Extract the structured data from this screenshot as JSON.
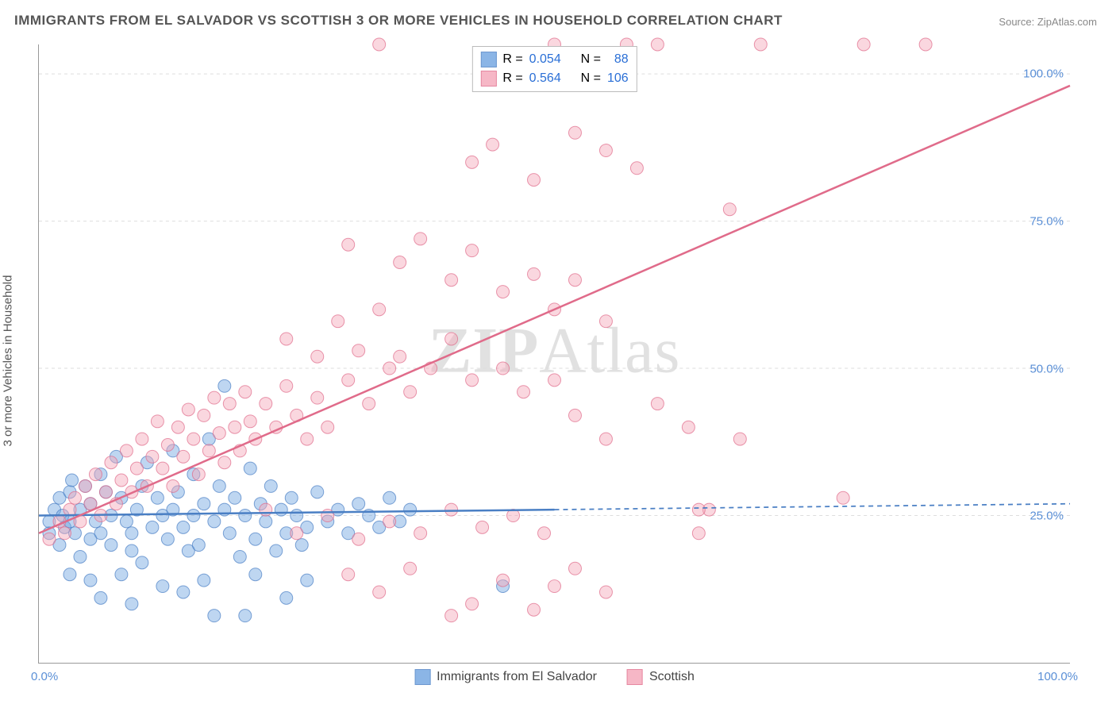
{
  "title": "IMMIGRANTS FROM EL SALVADOR VS SCOTTISH 3 OR MORE VEHICLES IN HOUSEHOLD CORRELATION CHART",
  "source_label": "Source:",
  "source_name": "ZipAtlas.com",
  "y_axis_label": "3 or more Vehicles in Household",
  "watermark": "ZIPAtlas",
  "chart": {
    "type": "scatter",
    "xlim": [
      0,
      100
    ],
    "ylim": [
      0,
      105
    ],
    "y_ticks": [
      25,
      50,
      75,
      100
    ],
    "y_tick_labels": [
      "25.0%",
      "50.0%",
      "75.0%",
      "100.0%"
    ],
    "x_tick_labels": [
      "0.0%",
      "100.0%"
    ],
    "background_color": "#ffffff",
    "grid_color": "#dddddd",
    "marker_radius": 8,
    "marker_opacity": 0.45,
    "trend_line_width": 2.5,
    "series": [
      {
        "name": "Immigrants from El Salvador",
        "fill": "#6fa3e0",
        "stroke": "#4a7fc4",
        "R": "0.054",
        "N": "88",
        "trend": {
          "y_at_x0": 25,
          "y_at_x100": 27,
          "solid_until_x": 50
        },
        "points": [
          [
            1,
            22
          ],
          [
            1,
            24
          ],
          [
            1.5,
            26
          ],
          [
            2,
            28
          ],
          [
            2,
            20
          ],
          [
            2.3,
            25
          ],
          [
            2.5,
            23
          ],
          [
            3,
            24
          ],
          [
            3,
            29
          ],
          [
            3.2,
            31
          ],
          [
            3.5,
            22
          ],
          [
            4,
            26
          ],
          [
            4,
            18
          ],
          [
            4.5,
            30
          ],
          [
            5,
            27
          ],
          [
            5,
            21
          ],
          [
            5.5,
            24
          ],
          [
            6,
            32
          ],
          [
            6,
            22
          ],
          [
            6.5,
            29
          ],
          [
            7,
            25
          ],
          [
            7,
            20
          ],
          [
            7.5,
            35
          ],
          [
            8,
            28
          ],
          [
            8.5,
            24
          ],
          [
            9,
            22
          ],
          [
            9,
            19
          ],
          [
            9.5,
            26
          ],
          [
            10,
            30
          ],
          [
            10,
            17
          ],
          [
            10.5,
            34
          ],
          [
            11,
            23
          ],
          [
            11.5,
            28
          ],
          [
            12,
            25
          ],
          [
            12.5,
            21
          ],
          [
            13,
            36
          ],
          [
            13,
            26
          ],
          [
            13.5,
            29
          ],
          [
            14,
            23
          ],
          [
            14.5,
            19
          ],
          [
            15,
            32
          ],
          [
            15,
            25
          ],
          [
            15.5,
            20
          ],
          [
            16,
            27
          ],
          [
            16.5,
            38
          ],
          [
            17,
            24
          ],
          [
            17.5,
            30
          ],
          [
            18,
            26
          ],
          [
            18,
            47
          ],
          [
            18.5,
            22
          ],
          [
            19,
            28
          ],
          [
            19.5,
            18
          ],
          [
            20,
            25
          ],
          [
            20.5,
            33
          ],
          [
            21,
            21
          ],
          [
            21.5,
            27
          ],
          [
            22,
            24
          ],
          [
            22.5,
            30
          ],
          [
            23,
            19
          ],
          [
            23.5,
            26
          ],
          [
            24,
            22
          ],
          [
            24.5,
            28
          ],
          [
            25,
            25
          ],
          [
            25.5,
            20
          ],
          [
            26,
            23
          ],
          [
            27,
            29
          ],
          [
            28,
            24
          ],
          [
            29,
            26
          ],
          [
            30,
            22
          ],
          [
            31,
            27
          ],
          [
            32,
            25
          ],
          [
            33,
            23
          ],
          [
            34,
            28
          ],
          [
            35,
            24
          ],
          [
            36,
            26
          ],
          [
            6,
            11
          ],
          [
            9,
            10
          ],
          [
            14,
            12
          ],
          [
            17,
            8
          ],
          [
            20,
            8
          ],
          [
            24,
            11
          ],
          [
            45,
            13
          ],
          [
            3,
            15
          ],
          [
            5,
            14
          ],
          [
            8,
            15
          ],
          [
            12,
            13
          ],
          [
            16,
            14
          ],
          [
            21,
            15
          ],
          [
            26,
            14
          ]
        ]
      },
      {
        "name": "Scottish",
        "fill": "#f4a6b8",
        "stroke": "#e06b8a",
        "R": "0.564",
        "N": "106",
        "trend": {
          "y_at_x0": 22,
          "y_at_x100": 98,
          "solid_until_x": 100
        },
        "points": [
          [
            1,
            21
          ],
          [
            2,
            24
          ],
          [
            2.5,
            22
          ],
          [
            3,
            26
          ],
          [
            3.5,
            28
          ],
          [
            4,
            24
          ],
          [
            4.5,
            30
          ],
          [
            5,
            27
          ],
          [
            5.5,
            32
          ],
          [
            6,
            25
          ],
          [
            6.5,
            29
          ],
          [
            7,
            34
          ],
          [
            7.5,
            27
          ],
          [
            8,
            31
          ],
          [
            8.5,
            36
          ],
          [
            9,
            29
          ],
          [
            9.5,
            33
          ],
          [
            10,
            38
          ],
          [
            10.5,
            30
          ],
          [
            11,
            35
          ],
          [
            11.5,
            41
          ],
          [
            12,
            33
          ],
          [
            12.5,
            37
          ],
          [
            13,
            30
          ],
          [
            13.5,
            40
          ],
          [
            14,
            35
          ],
          [
            14.5,
            43
          ],
          [
            15,
            38
          ],
          [
            15.5,
            32
          ],
          [
            16,
            42
          ],
          [
            16.5,
            36
          ],
          [
            17,
            45
          ],
          [
            17.5,
            39
          ],
          [
            18,
            34
          ],
          [
            18.5,
            44
          ],
          [
            19,
            40
          ],
          [
            19.5,
            36
          ],
          [
            20,
            46
          ],
          [
            20.5,
            41
          ],
          [
            21,
            38
          ],
          [
            22,
            44
          ],
          [
            23,
            40
          ],
          [
            24,
            47
          ],
          [
            25,
            42
          ],
          [
            26,
            38
          ],
          [
            27,
            45
          ],
          [
            28,
            40
          ],
          [
            30,
            48
          ],
          [
            32,
            44
          ],
          [
            34,
            50
          ],
          [
            36,
            46
          ],
          [
            24,
            55
          ],
          [
            27,
            52
          ],
          [
            29,
            58
          ],
          [
            31,
            53
          ],
          [
            33,
            60
          ],
          [
            35,
            52
          ],
          [
            38,
            50
          ],
          [
            40,
            55
          ],
          [
            42,
            48
          ],
          [
            45,
            50
          ],
          [
            47,
            46
          ],
          [
            50,
            48
          ],
          [
            52,
            42
          ],
          [
            55,
            38
          ],
          [
            30,
            71
          ],
          [
            35,
            68
          ],
          [
            37,
            72
          ],
          [
            40,
            65
          ],
          [
            42,
            70
          ],
          [
            45,
            63
          ],
          [
            48,
            66
          ],
          [
            50,
            60
          ],
          [
            52,
            65
          ],
          [
            55,
            58
          ],
          [
            60,
            44
          ],
          [
            63,
            40
          ],
          [
            65,
            26
          ],
          [
            33,
            105
          ],
          [
            42,
            85
          ],
          [
            44,
            88
          ],
          [
            48,
            82
          ],
          [
            50,
            105
          ],
          [
            52,
            90
          ],
          [
            55,
            87
          ],
          [
            57,
            105
          ],
          [
            58,
            84
          ],
          [
            60,
            105
          ],
          [
            67,
            77
          ],
          [
            70,
            105
          ],
          [
            80,
            105
          ],
          [
            86,
            105
          ],
          [
            30,
            15
          ],
          [
            33,
            12
          ],
          [
            36,
            16
          ],
          [
            40,
            8
          ],
          [
            42,
            10
          ],
          [
            45,
            14
          ],
          [
            48,
            9
          ],
          [
            50,
            13
          ],
          [
            52,
            16
          ],
          [
            55,
            12
          ],
          [
            64,
            22
          ],
          [
            64,
            26
          ],
          [
            68,
            38
          ],
          [
            22,
            26
          ],
          [
            25,
            22
          ],
          [
            28,
            25
          ],
          [
            31,
            21
          ],
          [
            34,
            24
          ],
          [
            37,
            22
          ],
          [
            40,
            26
          ],
          [
            43,
            23
          ],
          [
            46,
            25
          ],
          [
            49,
            22
          ],
          [
            78,
            28
          ]
        ]
      }
    ]
  },
  "legend_stats": {
    "r_prefix": "R =",
    "n_prefix": "N ="
  }
}
